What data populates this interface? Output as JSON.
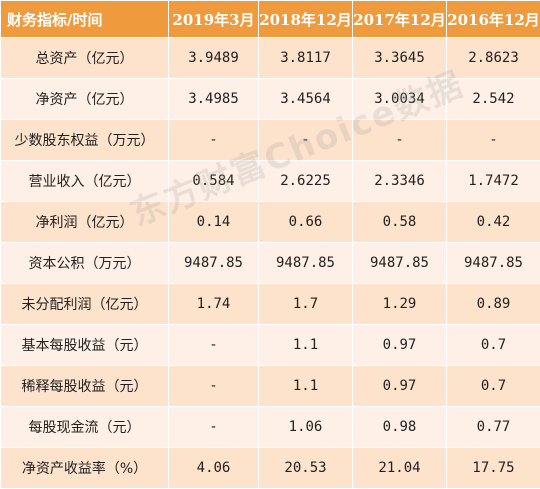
{
  "header": {
    "label": "财务指标/时间",
    "periods": [
      "2019年3月",
      "2018年12月",
      "2017年12月",
      "2016年12月"
    ]
  },
  "rows": [
    {
      "label": "总资产（亿元）",
      "values": [
        "3.9489",
        "3.8117",
        "3.3645",
        "2.8623"
      ]
    },
    {
      "label": "净资产（亿元）",
      "values": [
        "3.4985",
        "3.4564",
        "3.0034",
        "2.542"
      ]
    },
    {
      "label": "少数股东权益（万元）",
      "values": [
        "-",
        "-",
        "-",
        "-"
      ]
    },
    {
      "label": "营业收入（亿元）",
      "values": [
        "0.584",
        "2.6225",
        "2.3346",
        "1.7472"
      ]
    },
    {
      "label": "净利润（亿元）",
      "values": [
        "0.14",
        "0.66",
        "0.58",
        "0.42"
      ]
    },
    {
      "label": "资本公积（万元）",
      "values": [
        "9487.85",
        "9487.85",
        "9487.85",
        "9487.85"
      ]
    },
    {
      "label": "未分配利润（亿元）",
      "values": [
        "1.74",
        "1.7",
        "1.29",
        "0.89"
      ]
    },
    {
      "label": "基本每股收益（元）",
      "values": [
        "-",
        "1.1",
        "0.97",
        "0.7"
      ]
    },
    {
      "label": "稀释每股收益（元）",
      "values": [
        "-",
        "1.1",
        "0.97",
        "0.7"
      ]
    },
    {
      "label": "每股现金流（元）",
      "values": [
        "-",
        "1.06",
        "0.98",
        "0.77"
      ]
    },
    {
      "label": "净资产收益率（%）",
      "values": [
        "4.06",
        "20.53",
        "21.04",
        "17.75"
      ]
    }
  ],
  "watermark": "东方财富Choice数据",
  "colors": {
    "header_bg": "#f09a3e",
    "row_odd": "#fde2cc",
    "row_even": "#fef0e6",
    "header_text": "#ffffff"
  }
}
